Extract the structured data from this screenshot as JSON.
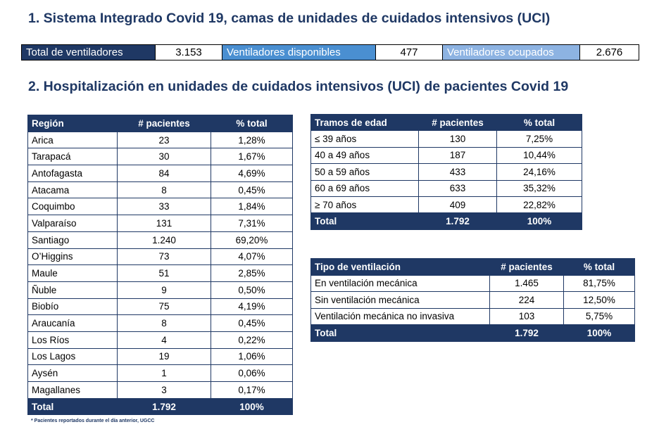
{
  "section1_title": "1. Sistema Integrado Covid 19, camas de unidades de cuidados intensivos (UCI)",
  "summary": {
    "total_label": "Total de ventiladores",
    "total_value": "3.153",
    "available_label": "Ventiladores disponibles",
    "available_value": "477",
    "occupied_label": "Ventiladores ocupados",
    "occupied_value": "2.676"
  },
  "section2_title": "2. Hospitalización en unidades de cuidados intensivos (UCI) de pacientes Covid 19",
  "region_table": {
    "headers": [
      "Región",
      "# pacientes",
      "% total"
    ],
    "rows": [
      [
        "Arica",
        "23",
        "1,28%"
      ],
      [
        "Tarapacá",
        "30",
        "1,67%"
      ],
      [
        "Antofagasta",
        "84",
        "4,69%"
      ],
      [
        "Atacama",
        "8",
        "0,45%"
      ],
      [
        "Coquimbo",
        "33",
        "1,84%"
      ],
      [
        "Valparaíso",
        "131",
        "7,31%"
      ],
      [
        "Santiago",
        "1.240",
        "69,20%"
      ],
      [
        "O’Higgins",
        "73",
        "4,07%"
      ],
      [
        "Maule",
        "51",
        "2,85%"
      ],
      [
        "Ñuble",
        "9",
        "0,50%"
      ],
      [
        "Biobío",
        "75",
        "4,19%"
      ],
      [
        "Araucanía",
        "8",
        "0,45%"
      ],
      [
        "Los Ríos",
        "4",
        "0,22%"
      ],
      [
        "Los Lagos",
        "19",
        "1,06%"
      ],
      [
        "Aysén",
        "1",
        "0,06%"
      ],
      [
        "Magallanes",
        "3",
        "0,17%"
      ]
    ],
    "total": [
      "Total",
      "1.792",
      "100%"
    ]
  },
  "age_table": {
    "headers": [
      "Tramos de edad",
      "# pacientes",
      "% total"
    ],
    "rows": [
      [
        "≤ 39 años",
        "130",
        "7,25%"
      ],
      [
        "40 a 49 años",
        "187",
        "10,44%"
      ],
      [
        "50 a 59 años",
        "433",
        "24,16%"
      ],
      [
        "60 a 69 años",
        "633",
        "35,32%"
      ],
      [
        "≥ 70 años",
        "409",
        "22,82%"
      ]
    ],
    "total": [
      "Total",
      "1.792",
      "100%"
    ]
  },
  "ventilation_table": {
    "headers": [
      "Tipo de ventilación",
      "# pacientes",
      "% total"
    ],
    "rows": [
      [
        "En ventilación mecánica",
        "1.465",
        "81,75%"
      ],
      [
        "Sin ventilación mecánica",
        "224",
        "12,50%"
      ],
      [
        "Ventilación mecánica no invasiva",
        "103",
        "5,75%"
      ]
    ],
    "total": [
      "Total",
      "1.792",
      "100%"
    ]
  },
  "footnote": "* Pacientes reportados durante el día anterior, UGCC",
  "colors": {
    "navy": "#1f3864",
    "blue_mid": "#4a8fd1",
    "blue_light": "#8db3e2"
  }
}
